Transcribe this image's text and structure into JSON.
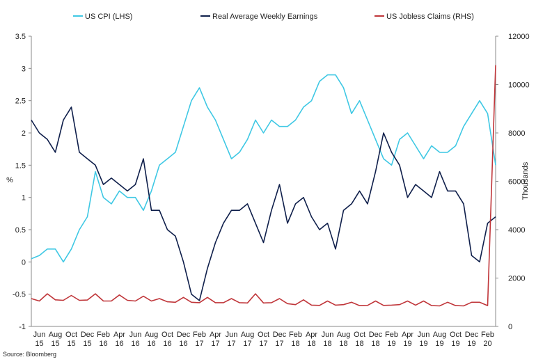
{
  "chart_data": {
    "type": "line",
    "source": "Source: Bloomberg",
    "ylabel": "%",
    "y2label": "Thousands",
    "ylim": [
      -1,
      3.5
    ],
    "yticks": [
      -1,
      -0.5,
      0,
      0.5,
      1,
      1.5,
      2,
      2.5,
      3,
      3.5
    ],
    "y2lim": [
      0,
      12000
    ],
    "y2ticks": [
      0,
      2000,
      4000,
      6000,
      8000,
      10000,
      12000
    ],
    "legend": "top",
    "categories": [
      null,
      [
        "Jun",
        "15"
      ],
      null,
      [
        "Aug",
        "15"
      ],
      null,
      [
        "Oct",
        "15"
      ],
      null,
      [
        "Dec",
        "15"
      ],
      null,
      [
        "Feb",
        "16"
      ],
      null,
      [
        "Apr",
        "16"
      ],
      null,
      [
        "Jun",
        "16"
      ],
      null,
      [
        "Aug",
        "16"
      ],
      null,
      [
        "Oct",
        "16"
      ],
      null,
      [
        "Dec",
        "16"
      ],
      null,
      [
        "Feb",
        "17"
      ],
      null,
      [
        "Apr",
        "17"
      ],
      null,
      [
        "Jun",
        "17"
      ],
      null,
      [
        "Aug",
        "17"
      ],
      null,
      [
        "Oct",
        "17"
      ],
      null,
      [
        "Dec",
        "17"
      ],
      null,
      [
        "Feb",
        "18"
      ],
      null,
      [
        "Apr",
        "18"
      ],
      null,
      [
        "Jun",
        "18"
      ],
      null,
      [
        "Aug",
        "18"
      ],
      null,
      [
        "Oct",
        "18"
      ],
      null,
      [
        "Dec",
        "18"
      ],
      null,
      [
        "Feb",
        "19"
      ],
      null,
      [
        "Apr",
        "19"
      ],
      null,
      [
        "Jun",
        "19"
      ],
      null,
      [
        "Aug",
        "19"
      ],
      null,
      [
        "Oct",
        "19"
      ],
      null,
      [
        "Dec",
        "19"
      ],
      null,
      [
        "Feb",
        "20"
      ],
      null
    ],
    "series": [
      {
        "name": "US CPI (LHS)",
        "color": "#3fc8e4",
        "values": [
          0.05,
          0.1,
          0.2,
          0.2,
          0.0,
          0.2,
          0.5,
          0.7,
          1.4,
          1.0,
          0.9,
          1.1,
          1.0,
          1.0,
          0.8,
          1.1,
          1.5,
          1.6,
          1.7,
          2.1,
          2.5,
          2.7,
          2.4,
          2.2,
          1.9,
          1.6,
          1.7,
          1.9,
          2.2,
          2.0,
          2.2,
          2.1,
          2.1,
          2.2,
          2.4,
          2.5,
          2.8,
          2.9,
          2.9,
          2.7,
          2.3,
          2.5,
          2.2,
          1.9,
          1.6,
          1.5,
          1.9,
          2.0,
          1.8,
          1.6,
          1.8,
          1.7,
          1.7,
          1.8,
          2.1,
          2.3,
          2.5,
          2.3,
          1.5
        ]
      },
      {
        "name": "Real Average Weekly Earnings",
        "color": "#0f1f4b",
        "values": [
          2.2,
          2.0,
          1.9,
          1.7,
          2.2,
          2.4,
          1.7,
          1.6,
          1.5,
          1.2,
          1.3,
          1.2,
          1.1,
          1.2,
          1.6,
          0.8,
          0.8,
          0.5,
          0.4,
          0.0,
          -0.5,
          -0.6,
          -0.1,
          0.3,
          0.6,
          0.8,
          0.8,
          0.9,
          0.6,
          0.3,
          0.8,
          1.2,
          0.6,
          0.9,
          1.0,
          0.7,
          0.5,
          0.6,
          0.2,
          0.8,
          0.9,
          1.1,
          0.9,
          1.4,
          2.0,
          1.7,
          1.5,
          1.0,
          1.2,
          1.1,
          1.0,
          1.4,
          1.1,
          1.1,
          0.9,
          0.1,
          0.0,
          0.6,
          0.7
        ]
      },
      {
        "name": "US Jobless Claims (RHS)",
        "color": "#c0363a",
        "axis": "y2",
        "values": [
          1150,
          1050,
          1350,
          1100,
          1080,
          1280,
          1080,
          1090,
          1350,
          1050,
          1050,
          1300,
          1080,
          1050,
          1250,
          1050,
          1150,
          1020,
          1000,
          1200,
          1000,
          980,
          1200,
          980,
          980,
          1150,
          980,
          970,
          1350,
          970,
          980,
          1150,
          940,
          900,
          1100,
          880,
          870,
          1050,
          880,
          900,
          1000,
          860,
          870,
          1050,
          870,
          880,
          900,
          1050,
          880,
          1050,
          860,
          850,
          1000,
          860,
          850,
          1000,
          1000,
          860,
          10800
        ]
      }
    ]
  }
}
